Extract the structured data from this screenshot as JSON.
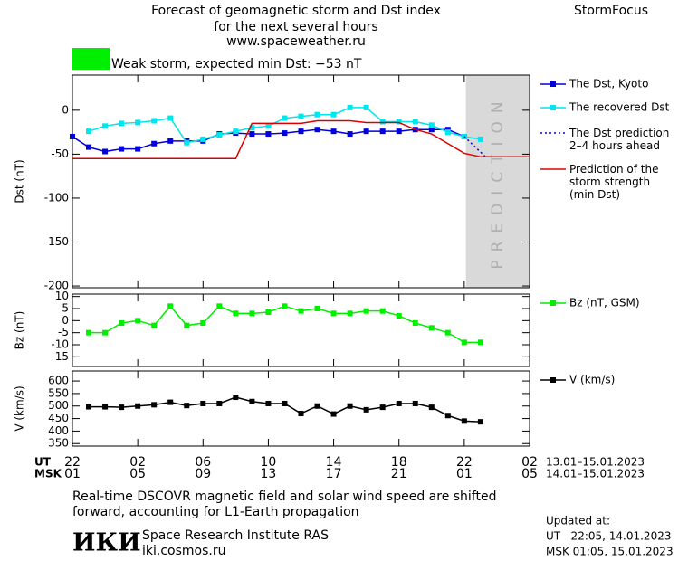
{
  "header": {
    "title_lines": [
      "Forecast of geomagnetic storm and Dst index",
      "for the next several hours",
      "www.spaceweather.ru"
    ],
    "brand": "StormFocus",
    "status": "Weak storm, expected min Dst: −53 nT",
    "status_color": "#00ee00"
  },
  "chart_data": [
    {
      "type": "line",
      "ylabel": "Dst (nT)",
      "xlim": [
        0,
        28
      ],
      "ylim": [
        -202,
        40
      ],
      "yticks": [
        0,
        -50,
        -100,
        -150,
        -200
      ],
      "shade_start": 24.1,
      "shade_label": "PREDICTION",
      "series": [
        {
          "name": "The Dst, Kyoto",
          "color": "#0000dd",
          "marker": "square",
          "dash": false,
          "x": [
            0,
            1,
            2,
            3,
            4,
            5,
            6,
            7,
            8,
            9,
            10,
            11,
            12,
            13,
            14,
            15,
            16,
            17,
            18,
            19,
            20,
            21,
            22,
            23,
            24
          ],
          "values": [
            -30,
            -42,
            -47,
            -44,
            -44,
            -38,
            -35,
            -35,
            -35,
            -27,
            -26,
            -27,
            -27,
            -26,
            -24,
            -22,
            -24,
            -27,
            -24,
            -24,
            -24,
            -22,
            -22,
            -22,
            -30
          ]
        },
        {
          "name": "The recovered Dst",
          "color": "#00e5ee",
          "marker": "square",
          "dash": false,
          "x": [
            1,
            2,
            3,
            4,
            5,
            6,
            7,
            8,
            9,
            10,
            11,
            12,
            13,
            14,
            15,
            16,
            17,
            18,
            19,
            20,
            21,
            22,
            23,
            24,
            25
          ],
          "values": [
            -24,
            -18,
            -15,
            -14,
            -12,
            -9,
            -37,
            -33,
            -28,
            -24,
            -20,
            -18,
            -9,
            -7,
            -5,
            -5,
            3,
            3,
            -13,
            -13,
            -13,
            -17,
            -25,
            -30,
            -33
          ]
        },
        {
          "name": "The Dst prediction\n2–4 hours ahead",
          "color": "#0000dd",
          "marker": "none",
          "dash": true,
          "x": [
            24,
            25.3,
            26,
            27
          ],
          "values": [
            -30,
            -53,
            -53,
            -53
          ]
        },
        {
          "name": "Prediction of the\nstorm strength\n(min Dst)",
          "color": "#dd0000",
          "marker": "none",
          "dash": false,
          "x": [
            0,
            10,
            11,
            14,
            15,
            17,
            18,
            20,
            21,
            22,
            23,
            24,
            25,
            28
          ],
          "values": [
            -55,
            -55,
            -15,
            -15,
            -12,
            -12,
            -14,
            -14,
            -22,
            -27,
            -38,
            -49,
            -53,
            -53
          ]
        }
      ]
    },
    {
      "type": "line",
      "ylabel": "Bz (nT)",
      "xlim": [
        0,
        28
      ],
      "ylim": [
        -19,
        11
      ],
      "yticks": [
        10,
        5,
        0,
        -5,
        -10,
        -15
      ],
      "series": [
        {
          "name": "Bz (nT, GSM)",
          "color": "#00ee00",
          "marker": "square",
          "dash": false,
          "x": [
            1,
            2,
            3,
            4,
            5,
            6,
            7,
            8,
            9,
            10,
            11,
            12,
            13,
            14,
            15,
            16,
            17,
            18,
            19,
            20,
            21,
            22,
            23,
            24,
            25
          ],
          "values": [
            -5,
            -5,
            -1,
            0,
            -2,
            6,
            -2,
            -1,
            6,
            3,
            3,
            3.5,
            6,
            4,
            5,
            3,
            3,
            4,
            4,
            2,
            -1,
            -3,
            -5,
            -9,
            -9
          ]
        }
      ]
    },
    {
      "type": "line",
      "ylabel": "V (km/s)",
      "xlim": [
        0,
        28
      ],
      "ylim": [
        340,
        640
      ],
      "yticks": [
        600,
        550,
        500,
        450,
        400,
        350
      ],
      "xticks": [
        {
          "value": 0,
          "label": "22"
        },
        {
          "value": 4,
          "label": "02"
        },
        {
          "value": 8,
          "label": "06"
        },
        {
          "value": 12,
          "label": "10"
        },
        {
          "value": 16,
          "label": "14"
        },
        {
          "value": 20,
          "label": "18"
        },
        {
          "value": 24,
          "label": "22"
        },
        {
          "value": 28,
          "label": "02"
        }
      ],
      "msk_ticks": [
        {
          "value": 0,
          "label": "01"
        },
        {
          "value": 4,
          "label": "05"
        },
        {
          "value": 8,
          "label": "09"
        },
        {
          "value": 12,
          "label": "13"
        },
        {
          "value": 16,
          "label": "17"
        },
        {
          "value": 20,
          "label": "21"
        },
        {
          "value": 24,
          "label": "01"
        },
        {
          "value": 28,
          "label": "05"
        }
      ],
      "ut_label": "UT",
      "msk_label": "MSK",
      "ut_range": "13.01–15.01.2023",
      "msk_range": "14.01–15.01.2023",
      "series": [
        {
          "name": "V (km/s)",
          "color": "#000000",
          "marker": "square",
          "dash": false,
          "x": [
            1,
            2,
            3,
            4,
            5,
            6,
            7,
            8,
            9,
            10,
            11,
            12,
            13,
            14,
            15,
            16,
            17,
            18,
            19,
            20,
            21,
            22,
            23,
            24,
            25
          ],
          "values": [
            497,
            497,
            495,
            500,
            505,
            515,
            502,
            510,
            510,
            535,
            518,
            510,
            510,
            470,
            500,
            468,
            500,
            485,
            495,
            510,
            510,
            495,
            462,
            440,
            437
          ]
        }
      ]
    }
  ],
  "footer": {
    "note_lines": [
      "Real-time DSCOVR magnetic field and solar wind speed are shifted",
      "forward, accounting for L1-Earth propagation"
    ],
    "logo": "ИКИ",
    "institute": "Space Research Institute RAS",
    "site": "iki.cosmos.ru",
    "updated_label": "Updated at:",
    "updated_ut": "UT   22:05, 14.01.2023",
    "updated_msk": "MSK 01:05, 15.01.2023"
  }
}
